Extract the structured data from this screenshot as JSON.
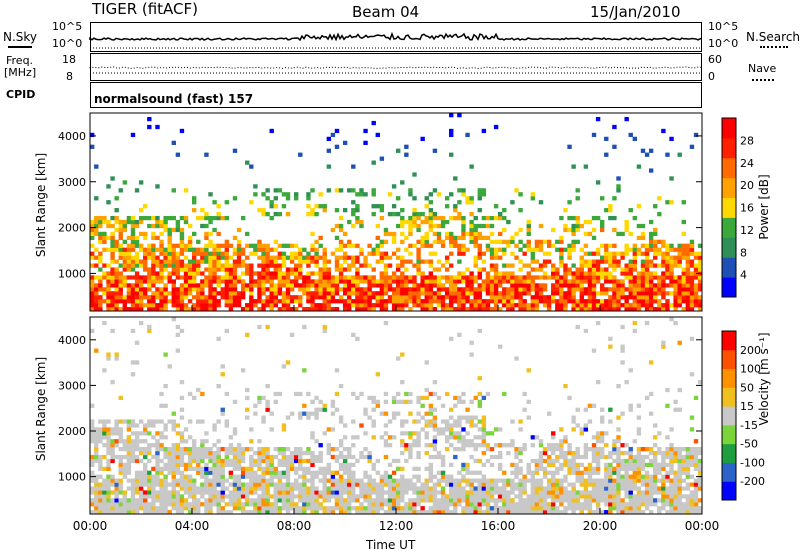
{
  "header": {
    "radar": "TIGER (fitACF)",
    "beam": "Beam 04",
    "date": "15/Jan/2010"
  },
  "panel_labels": {
    "nsky": "N.Sky",
    "nsearch": "N.Search",
    "freq_line1": "Freq.",
    "freq_line2": "[MHz]",
    "nave": "Nave",
    "cpid": "CPID",
    "cpid_value": "normalsound (fast) 157",
    "nsky_ticks": [
      "10^5",
      "10^0"
    ],
    "nsearch_ticks": [
      "10^5",
      "10^0"
    ],
    "freq_ticks": [
      "18",
      "8"
    ],
    "nave_ticks": [
      "60",
      "0"
    ]
  },
  "chart_data": [
    {
      "type": "heatmap",
      "name": "power",
      "ylabel": "Slant Range [km]",
      "ylim": [
        180,
        4500
      ],
      "yticks": [
        "4000",
        "3000",
        "2000",
        "1000"
      ],
      "colorbar": {
        "label": "Power [dB]",
        "ticks": [
          "28",
          "24",
          "20",
          "16",
          "12",
          "8",
          "4"
        ],
        "colors": [
          "#0000ff",
          "#1e4fb4",
          "#2f8f56",
          "#3aa83a",
          "#ffd800",
          "#ffa200",
          "#ff6a00",
          "#ff2000",
          "#ff0000"
        ]
      }
    },
    {
      "type": "heatmap",
      "name": "velocity",
      "ylabel": "Slant Range [km]",
      "ylim": [
        180,
        4500
      ],
      "yticks": [
        "4000",
        "3000",
        "2000",
        "1000"
      ],
      "xlabel": "Time UT",
      "xticks": [
        "00:00",
        "04:00",
        "08:00",
        "12:00",
        "16:00",
        "20:00",
        "00:00"
      ],
      "colorbar": {
        "label": "Velocity [m s⁻¹]",
        "ticks": [
          "200",
          "100",
          "50",
          "15",
          "-15",
          "-50",
          "-100",
          "-200"
        ],
        "colors": [
          "#0000ff",
          "#2b63c9",
          "#1f9e3f",
          "#7cd43c",
          "#c8c8c8",
          "#f0c020",
          "#ff9000",
          "#ff5000",
          "#ff0000"
        ]
      }
    }
  ]
}
